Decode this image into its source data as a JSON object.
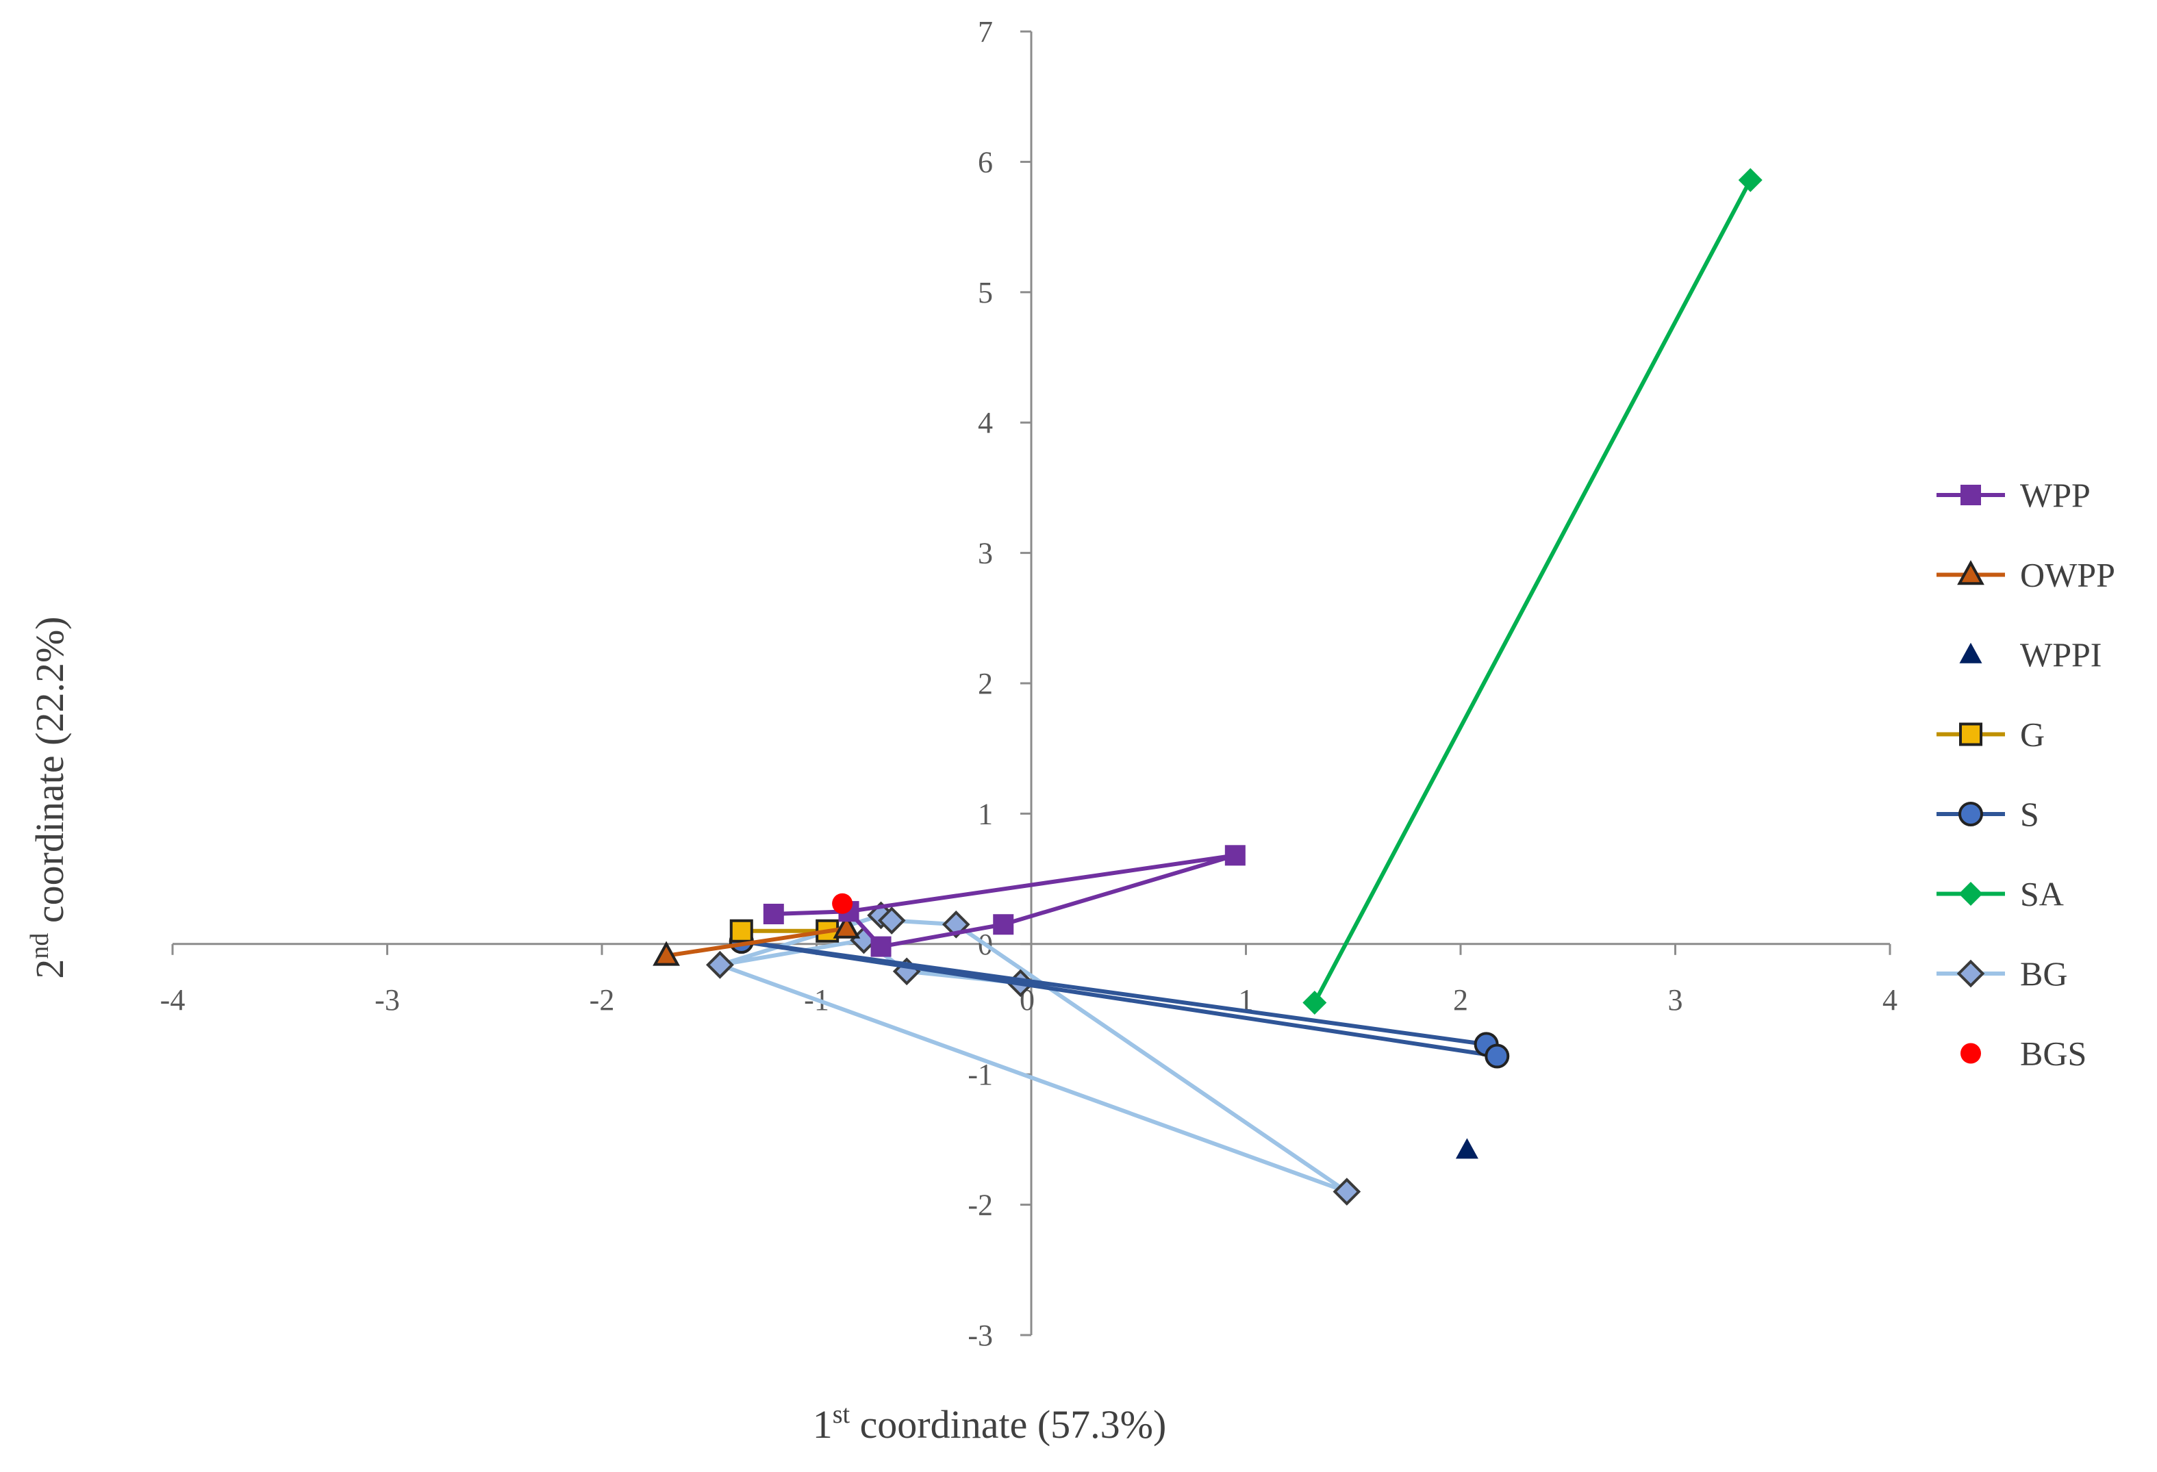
{
  "chart_data": {
    "type": "scatter",
    "title": "",
    "xlabel": {
      "prefix": "1",
      "sup": "st",
      "rest": " coordinate (57.3%)"
    },
    "ylabel": {
      "prefix": "2",
      "sup": "nd",
      "rest": " coordinate (22.2%)"
    },
    "xlim": [
      -4,
      4
    ],
    "ylim": [
      -3,
      7
    ],
    "xticks": [
      -4,
      -3,
      -2,
      -1,
      0,
      1,
      2,
      3,
      4
    ],
    "yticks": [
      -3,
      -2,
      -1,
      0,
      1,
      2,
      3,
      4,
      5,
      6,
      7
    ],
    "grid": false,
    "legend_position": "right",
    "series": [
      {
        "name": "WPP",
        "color": "#7030A0",
        "marker": "square",
        "line": true,
        "points": [
          [
            -1.2,
            0.23
          ],
          [
            -0.85,
            0.25
          ],
          [
            -0.7,
            -0.02
          ],
          [
            -0.13,
            0.15
          ],
          [
            0.95,
            0.68
          ],
          [
            -0.85,
            0.25
          ]
        ]
      },
      {
        "name": "OWPP",
        "color": "#C55A11",
        "marker": "triangle",
        "line": true,
        "points": [
          [
            -1.7,
            -0.09
          ],
          [
            -0.86,
            0.12
          ]
        ]
      },
      {
        "name": "WPPI",
        "color": "#002060",
        "marker": "triangle",
        "line": false,
        "points": [
          [
            2.03,
            -1.58
          ]
        ]
      },
      {
        "name": "G",
        "color": "#BF9000",
        "fill": "#F2B705",
        "marker": "square",
        "line": true,
        "points": [
          [
            -1.35,
            0.1
          ],
          [
            -0.95,
            0.1
          ]
        ]
      },
      {
        "name": "S",
        "color": "#2F5597",
        "fill": "#4472C4",
        "marker": "circle",
        "line": true,
        "points": [
          [
            -1.35,
            0.02
          ],
          [
            2.12,
            -0.77
          ],
          [
            -1.35,
            0.02
          ],
          [
            2.17,
            -0.86
          ]
        ]
      },
      {
        "name": "SA",
        "color": "#00B050",
        "marker": "diamond",
        "line": true,
        "points": [
          [
            1.32,
            -0.45
          ],
          [
            3.35,
            5.86
          ]
        ]
      },
      {
        "name": "BG",
        "color": "#9DC3E6",
        "fill": "#8FAADC",
        "marker": "diamond",
        "line": true,
        "points": [
          [
            -1.45,
            -0.16
          ],
          [
            -0.7,
            0.22
          ],
          [
            -0.65,
            0.18
          ],
          [
            -0.35,
            0.15
          ],
          [
            1.47,
            -1.9
          ],
          [
            -1.45,
            -0.16
          ],
          [
            -0.78,
            0.03
          ],
          [
            -0.58,
            -0.21
          ],
          [
            -0.05,
            -0.3
          ]
        ]
      },
      {
        "name": "BGS",
        "color": "#FF0000",
        "marker": "circle",
        "line": false,
        "points": [
          [
            -0.88,
            0.31
          ]
        ]
      }
    ]
  }
}
